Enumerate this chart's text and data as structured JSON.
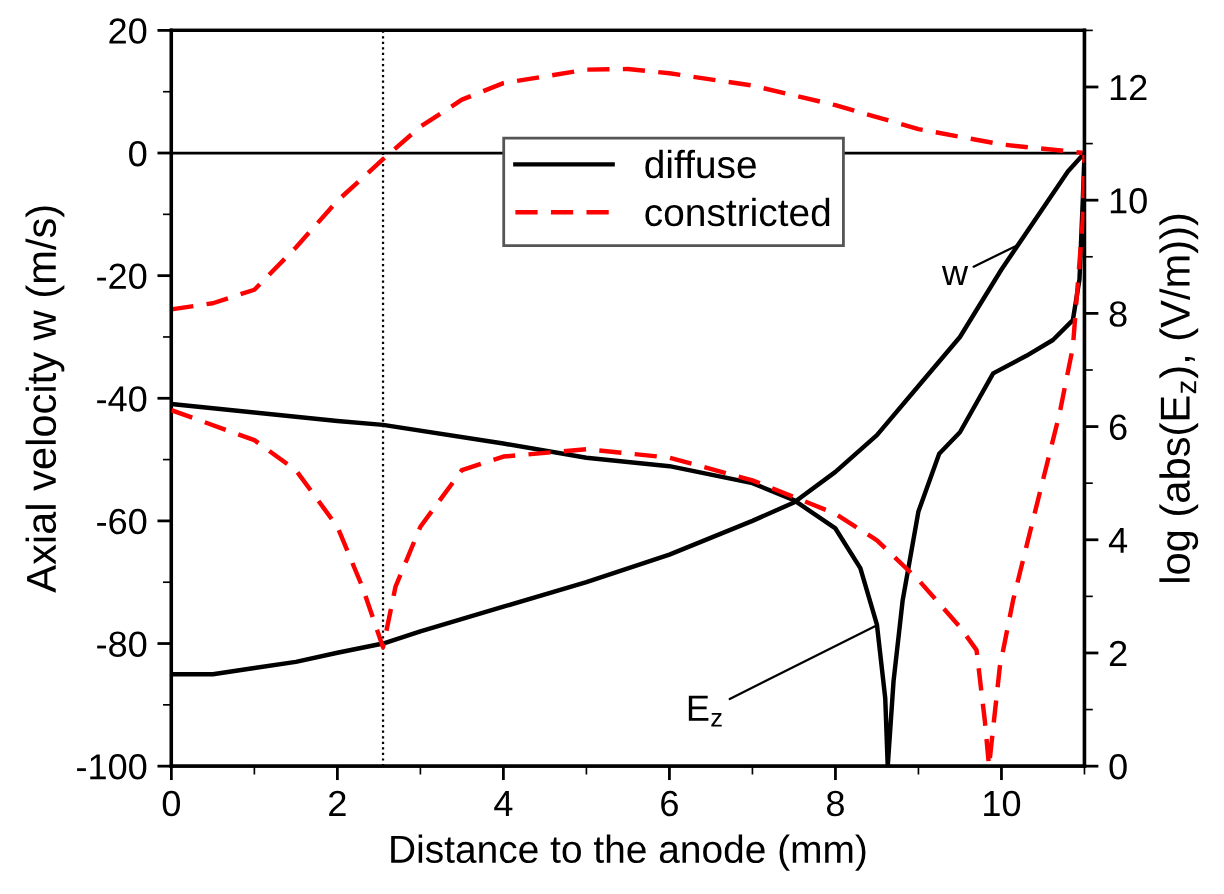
{
  "chart_data": {
    "type": "line",
    "xlabel": "Distance to the anode (mm)",
    "ylabel": "Axial velocity w (m/s)",
    "y2label": "log (abs(E$_{z}$), (V/m)))",
    "xlim": [
      0,
      11
    ],
    "xticks": [
      0,
      2,
      4,
      6,
      8,
      10
    ],
    "ylim": [
      -100,
      20
    ],
    "yticks": [
      -100,
      -80,
      -60,
      -40,
      -20,
      0,
      20
    ],
    "y2lim": [
      0,
      13
    ],
    "y2ticks": [
      0,
      2,
      4,
      6,
      8,
      10,
      12
    ],
    "legend": "top",
    "grid": false,
    "marker": "none",
    "series": [
      {
        "name": "diffuse",
        "color": "#000000",
        "line_style": "solid",
        "x": [
          0,
          0.5,
          1,
          1.5,
          2,
          2.55,
          3,
          4,
          5,
          6,
          7,
          7.5,
          8,
          8.5,
          9,
          9.5,
          10,
          10.5,
          10.8,
          11
        ],
        "values": [
          -85,
          -85,
          -84,
          -83,
          -81.5,
          -80,
          -78,
          -74,
          -70,
          -65.5,
          -60,
          -57,
          -52,
          -46,
          -38,
          -30,
          -19,
          -9,
          -3,
          0
        ]
      },
      {
        "name": "constricted",
        "color": "#ff0000",
        "line_style": "dashed",
        "x": [
          0,
          0.5,
          1,
          1.5,
          2,
          2.55,
          3,
          3.5,
          4,
          5,
          5.5,
          6,
          7,
          8,
          9,
          10,
          11
        ],
        "values": [
          -25.5,
          -24.5,
          -22.3,
          -15.4,
          -7.8,
          -1,
          4.3,
          8.7,
          11.4,
          13.6,
          13.7,
          13,
          11,
          7.8,
          3.9,
          1.4,
          0
        ]
      },
      {
        "color": "#000000",
        "line_style": "solid",
        "axis": "y2",
        "x": [
          0,
          1,
          2,
          2.55,
          4,
          5,
          6,
          7,
          7.5,
          8,
          8.3,
          8.5,
          8.6,
          8.63,
          8.7,
          8.81,
          9,
          9.25,
          9.5,
          9.9,
          10.3,
          10.62,
          10.86,
          10.94,
          10.98,
          11
        ],
        "values": [
          6.4,
          6.25,
          6.1,
          6.03,
          5.7,
          5.45,
          5.3,
          5.0,
          4.7,
          4.2,
          3.5,
          2.5,
          1.2,
          0,
          1.5,
          2.93,
          4.5,
          5.52,
          5.9,
          6.94,
          7.25,
          7.53,
          7.88,
          8.6,
          10.0,
          10.8
        ]
      },
      {
        "color": "#ff0000",
        "line_style": "dashed",
        "axis": "y2",
        "x": [
          0,
          1,
          1.5,
          2,
          2.3,
          2.55,
          2.7,
          3,
          3.5,
          4,
          5,
          6,
          7,
          8,
          8.5,
          9,
          9.5,
          9.7,
          9.8,
          9.85,
          9.98,
          10.14,
          10.38,
          10.7,
          10.86,
          10.98,
          11
        ],
        "values": [
          6.29,
          5.76,
          5.23,
          4.23,
          3.17,
          2.1,
          3.17,
          4.23,
          5.23,
          5.47,
          5.6,
          5.45,
          5.05,
          4.46,
          3.99,
          3.29,
          2.46,
          2.05,
          0.8,
          0,
          1.75,
          2.93,
          4.35,
          6.23,
          7.4,
          9.65,
          10.8
        ]
      }
    ],
    "ref_lines": [
      {
        "axis": "y",
        "value": 0,
        "color": "#000000",
        "line_style": "solid"
      },
      {
        "axis": "x",
        "value": 2.55,
        "color": "#000000",
        "line_style": "dotted"
      }
    ],
    "annotations": [
      {
        "text": "w",
        "x": 10.2,
        "y": -15
      },
      {
        "text": "E$_{z}$",
        "x": 8.5,
        "y": -77
      }
    ]
  }
}
